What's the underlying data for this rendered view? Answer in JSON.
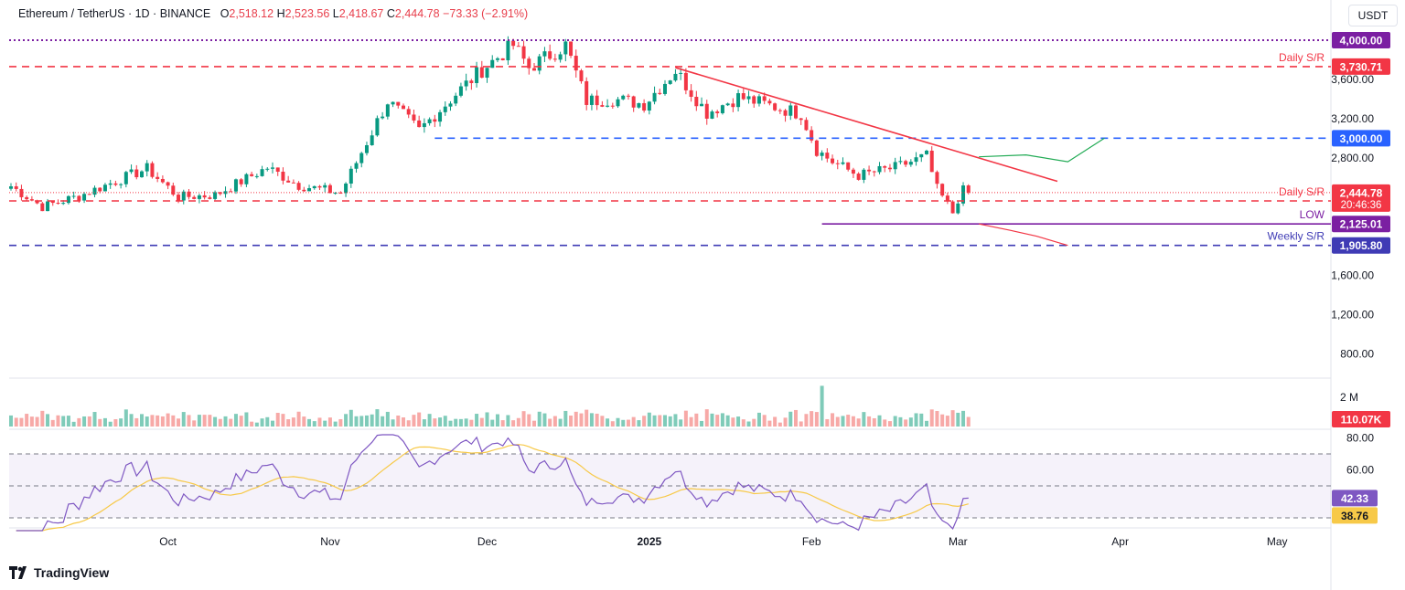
{
  "header": {
    "symbol": "Ethereum / TetherUS · 1D · BINANCE",
    "o_label": "O",
    "o_value": "2,518.12",
    "h_label": "H",
    "h_value": "2,523.56",
    "l_label": "L",
    "l_value": "2,418.67",
    "c_label": "C",
    "c_value": "2,444.78",
    "change": "−73.33 (−2.91%)"
  },
  "currency_button": "USDT",
  "brand": "TradingView",
  "colors": {
    "up": "#089981",
    "down": "#f23645",
    "rsi": "#7e57c2",
    "rsi_ma": "#f7c948",
    "sr": "#f23645",
    "blue": "#2962ff",
    "purple": "#7b1fa2"
  },
  "chart_data": {
    "type": "candlestick",
    "title": "Ethereum / TetherUS · 1D · BINANCE",
    "price_axis": {
      "min": 550,
      "max": 4250,
      "ticks": [
        "3,600.00",
        "3,200.00",
        "2,800.00",
        "1,600.00",
        "1,200.00",
        "800.00"
      ],
      "tick_values": [
        3600,
        3200,
        2800,
        1600,
        1200,
        800
      ]
    },
    "time_axis": {
      "ticks": [
        "Oct",
        "Nov",
        "Dec",
        "2025",
        "Feb",
        "Mar",
        "Apr",
        "May"
      ],
      "tick_dates": [
        "2024-10-01",
        "2024-11-01",
        "2024-12-01",
        "2025-01-01",
        "2025-02-01",
        "2025-03-01",
        "2025-04-01",
        "2025-05-01"
      ]
    },
    "anchor_points": [
      {
        "date": "2024-09-01",
        "close": 2510
      },
      {
        "date": "2024-09-07",
        "close": 2300
      },
      {
        "date": "2024-09-14",
        "close": 2410
      },
      {
        "date": "2024-09-20",
        "close": 2540
      },
      {
        "date": "2024-09-27",
        "close": 2690
      },
      {
        "date": "2024-10-03",
        "close": 2400
      },
      {
        "date": "2024-10-10",
        "close": 2420
      },
      {
        "date": "2024-10-20",
        "close": 2700
      },
      {
        "date": "2024-10-26",
        "close": 2520
      },
      {
        "date": "2024-11-03",
        "close": 2440
      },
      {
        "date": "2024-11-08",
        "close": 2960
      },
      {
        "date": "2024-11-12",
        "close": 3380
      },
      {
        "date": "2024-11-18",
        "close": 3080
      },
      {
        "date": "2024-11-25",
        "close": 3450
      },
      {
        "date": "2024-11-30",
        "close": 3700
      },
      {
        "date": "2024-12-06",
        "close": 3950
      },
      {
        "date": "2024-12-09",
        "close": 3720
      },
      {
        "date": "2024-12-16",
        "close": 3950
      },
      {
        "date": "2024-12-20",
        "close": 3380
      },
      {
        "date": "2024-12-25",
        "close": 3400
      },
      {
        "date": "2024-12-31",
        "close": 3350
      },
      {
        "date": "2025-01-06",
        "close": 3690
      },
      {
        "date": "2025-01-12",
        "close": 3260
      },
      {
        "date": "2025-01-18",
        "close": 3420
      },
      {
        "date": "2025-01-25",
        "close": 3320
      },
      {
        "date": "2025-01-30",
        "close": 3250
      },
      {
        "date": "2025-02-02",
        "close": 2880
      },
      {
        "date": "2025-02-05",
        "close": 2760
      },
      {
        "date": "2025-02-10",
        "close": 2620
      },
      {
        "date": "2025-02-17",
        "close": 2700
      },
      {
        "date": "2025-02-23",
        "close": 2820
      },
      {
        "date": "2025-02-25",
        "close": 2480
      },
      {
        "date": "2025-02-28",
        "close": 2240
      },
      {
        "date": "2025-03-02",
        "close": 2518
      },
      {
        "date": "2025-03-03",
        "close": 2445
      }
    ],
    "horizontal_levels": [
      {
        "label": "Daily S/R",
        "value": 3730.71,
        "tag": "3,730.71",
        "color": "#f23645",
        "style": "dashed"
      },
      {
        "label": "",
        "value": 4000.0,
        "tag": "4,000.00",
        "color": "#7b1fa2",
        "style": "dotted"
      },
      {
        "label": "",
        "value": 3000.0,
        "tag": "3,000.00",
        "color": "#2962ff",
        "style": "dashed"
      },
      {
        "label": "Daily S/R",
        "value": 2359.89,
        "tag": "2,359.89",
        "color": "#f23645",
        "style": "dashed"
      },
      {
        "label": "LOW",
        "value": 2125.01,
        "tag": "2,125.01",
        "color": "#7b1fa2",
        "style": "solid"
      },
      {
        "label": "Weekly S/R",
        "value": 1905.8,
        "tag": "1,905.80",
        "color": "#3f3bb5",
        "style": "dashed"
      }
    ],
    "last_price": {
      "value": 2444.78,
      "tag": "2,444.78",
      "countdown": "20:46:36"
    },
    "trendline": {
      "start": {
        "date": "2025-01-06",
        "price": 3720
      },
      "end": {
        "date": "2025-03-20",
        "price": 2560
      }
    },
    "projections": {
      "bullish": [
        {
          "date": "2025-03-05",
          "price": 2810
        },
        {
          "date": "2025-03-14",
          "price": 2830
        },
        {
          "date": "2025-03-22",
          "price": 2760
        },
        {
          "date": "2025-03-29",
          "price": 3000
        }
      ],
      "bearish": [
        {
          "date": "2025-03-05",
          "price": 2125
        },
        {
          "date": "2025-03-11",
          "price": 2060
        },
        {
          "date": "2025-03-16",
          "price": 2000
        },
        {
          "date": "2025-03-22",
          "price": 1905.8
        }
      ]
    },
    "volume": {
      "tick": "2 M",
      "last": "110.07K",
      "spike_date": "2025-02-03"
    },
    "rsi": {
      "ticks": [
        "80.00",
        "60.00"
      ],
      "tick_values": [
        80,
        60
      ],
      "bands": [
        70,
        50,
        30
      ],
      "value": "42.33",
      "ma_value": "38.76"
    }
  }
}
